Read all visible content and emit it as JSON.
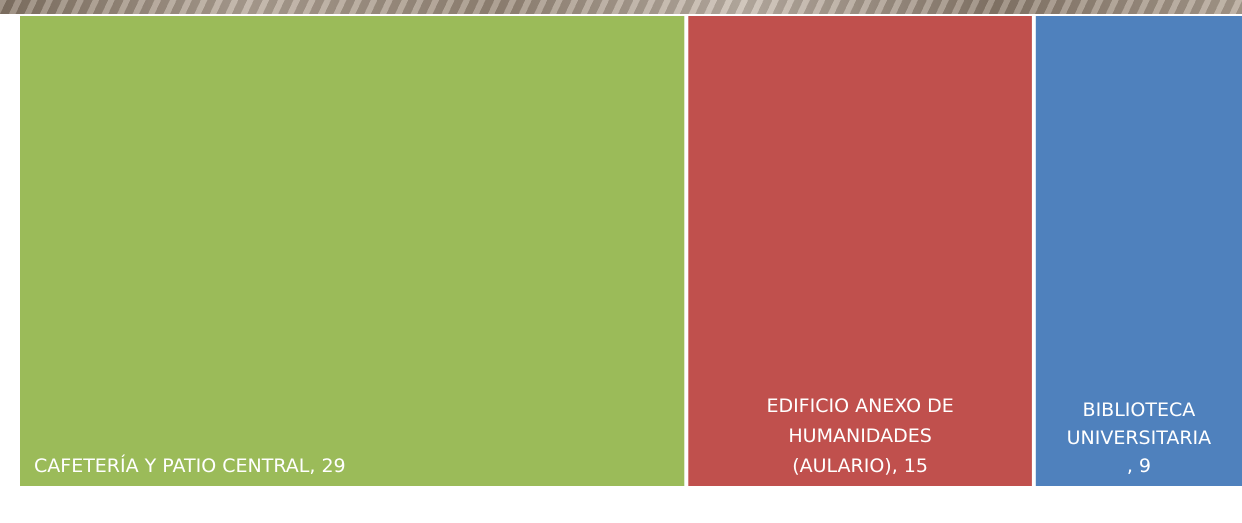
{
  "chart_data": {
    "type": "treemap",
    "items": [
      {
        "label": "CAFETERÍA Y PATIO CENTRAL, 29",
        "category": "CAFETERÍA Y PATIO CENTRAL",
        "value": 29,
        "color": "#9bbb59"
      },
      {
        "label": "EDIFICIO ANEXO DE HUMANIDADES (AULARIO), 15",
        "category": "EDIFICIO ANEXO DE HUMANIDADES (AULARIO)",
        "value": 15,
        "color": "#c0504d"
      },
      {
        "label": "BIBLIOTECA UNIVERSITARIA, 9",
        "category": "BIBLIOTECA UNIVERSITARIA",
        "value": 9,
        "color": "#4f81bd"
      }
    ]
  }
}
